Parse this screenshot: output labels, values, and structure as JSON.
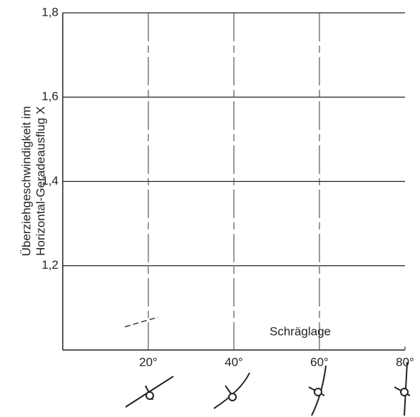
{
  "chart_data": {
    "type": "line",
    "ylabel": [
      "Überziehgeschwindigkeit im",
      "Horizontal-Geradeausflug X"
    ],
    "annotation": "Schräglage",
    "series": [
      {
        "color": "#222",
        "x": [
          14.5,
          22.3
        ],
        "values": [
          1.055,
          1.078
        ]
      }
    ],
    "xlim": [
      0,
      80
    ],
    "xticks": [
      {
        "value": 20,
        "label": "20°"
      },
      {
        "value": 40,
        "label": "40°"
      },
      {
        "value": 60,
        "label": "60°"
      },
      {
        "value": 80,
        "label": "80°"
      }
    ],
    "ylim": [
      1.0,
      1.8
    ],
    "yticks": [
      {
        "value": 1.2,
        "label": "1,2"
      },
      {
        "value": 1.4,
        "label": "1,4"
      },
      {
        "value": 1.6,
        "label": "1,6"
      },
      {
        "value": 1.8,
        "label": "1,8"
      }
    ],
    "grid": true
  }
}
